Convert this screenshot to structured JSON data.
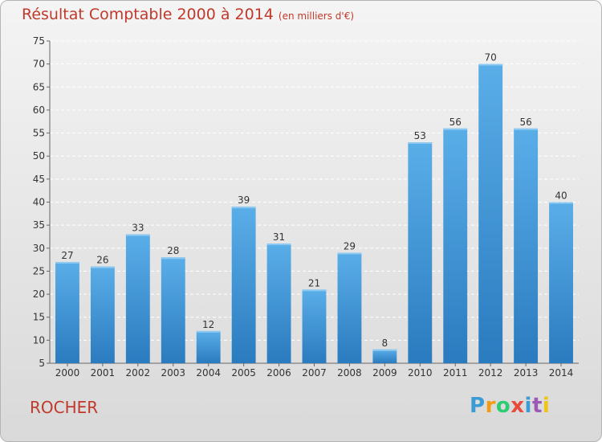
{
  "header": {
    "title": "Résultat Comptable 2000 à 2014",
    "subtitle": "(en milliers d'€)"
  },
  "footer": {
    "commune": "ROCHER",
    "logo": "Proxiti",
    "logo_letters": [
      "P",
      "r",
      "o",
      "x",
      "i",
      "t",
      "i"
    ],
    "logo_colors": [
      "#3a9bd5",
      "#f39c12",
      "#2ecc71",
      "#e74c3c",
      "#3a9bd5",
      "#9b59b6",
      "#f1c40f"
    ]
  },
  "chart_data": {
    "type": "bar",
    "title": "Résultat Comptable 2000 à 2014",
    "subtitle": "(en milliers d'€)",
    "categories": [
      "2000",
      "2001",
      "2002",
      "2003",
      "2004",
      "2005",
      "2006",
      "2007",
      "2008",
      "2009",
      "2010",
      "2011",
      "2012",
      "2013",
      "2014"
    ],
    "values": [
      27,
      26,
      33,
      28,
      12,
      39,
      31,
      21,
      29,
      8,
      53,
      56,
      70,
      56,
      40
    ],
    "ylim": [
      5,
      75
    ],
    "yticks": [
      5,
      10,
      15,
      20,
      25,
      30,
      35,
      40,
      45,
      50,
      55,
      60,
      65,
      70,
      75
    ],
    "xlabel": "",
    "ylabel": "",
    "grid": true,
    "data_labels": true,
    "bar_color": "#3d94d6",
    "title_color": "#c0392b"
  }
}
